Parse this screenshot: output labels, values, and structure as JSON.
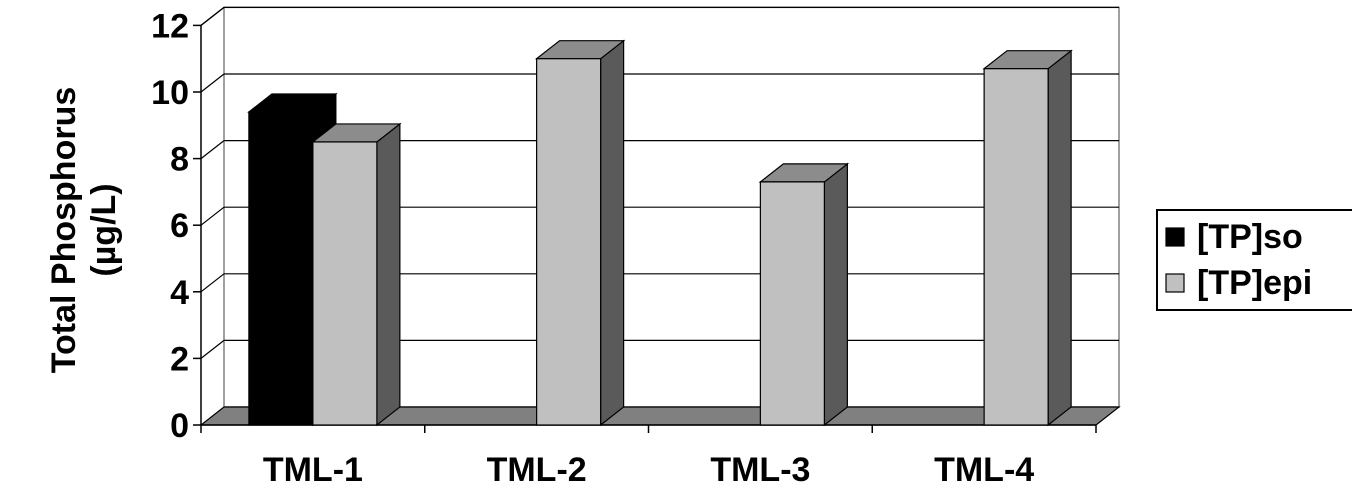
{
  "chart_data": {
    "type": "bar",
    "categories": [
      "TML-1",
      "TML-2",
      "TML-3",
      "TML-4"
    ],
    "series": [
      {
        "name": "[TP]so",
        "values": [
          9.4,
          null,
          null,
          null
        ]
      },
      {
        "name": "[TP]epi",
        "values": [
          8.5,
          11.0,
          7.3,
          10.7
        ]
      }
    ],
    "ylabel": [
      "Total Phosphorus",
      "(µg/L)"
    ],
    "xlabel": "",
    "ylim": [
      0,
      12
    ],
    "yticks": [
      0,
      2,
      4,
      6,
      8,
      10,
      12
    ],
    "grid": true,
    "legend_position": "right",
    "three_d": true
  },
  "colors": {
    "series_fronts": [
      "#000000",
      "#c0c0c0"
    ],
    "series_sides": [
      "#000000",
      "#5a5a5a"
    ],
    "series_tops": [
      "#000000",
      "#8c8c8c"
    ],
    "floor": "#808080",
    "gridline": "#000000",
    "wall_border": "#808080"
  }
}
